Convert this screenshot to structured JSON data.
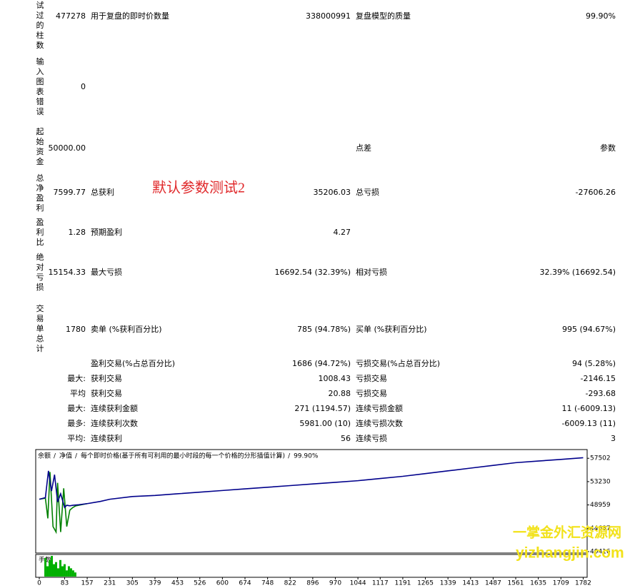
{
  "report": {
    "rows": [
      {
        "head": "试过的柱数",
        "value": "477278",
        "c1": "用于复盘的即时价数量",
        "v1": "338000991",
        "c2": "复盘模型的质量",
        "v2": "99.90%"
      },
      {
        "head": "输入图表错误",
        "value": "0"
      },
      {
        "head": "起始资金",
        "value": "50000.00",
        "c2": "点差",
        "v2": "参数"
      },
      {
        "head": "总净盈利",
        "value": "7599.77",
        "c1": "总获利",
        "v1": "35206.03",
        "c2": "总亏损",
        "v2": "-27606.26"
      },
      {
        "head": "盈利比",
        "value": "1.28",
        "c1": "预期盈利",
        "v1": "4.27"
      },
      {
        "head": "绝对亏损",
        "value": "15154.33",
        "c1": "最大亏损",
        "v1": "16692.54 (32.39%)",
        "c2": "相对亏损",
        "v2": "32.39% (16692.54)"
      },
      {
        "head": "交易单总计",
        "value": "1780",
        "c1": "卖单 (%获利百分比)",
        "v1": "785 (94.78%)",
        "c2": "买单 (%获利百分比)",
        "v2": "995 (94.67%)"
      },
      {
        "c1": "盈利交易(%占总百分比)",
        "v1": "1686 (94.72%)",
        "c2": "亏损交易(%占总百分比)",
        "v2": "94 (5.28%)"
      },
      {
        "value": "最大:",
        "c1": "获利交易",
        "v1": "1008.43",
        "c2": "亏损交易",
        "v2": "-2146.15"
      },
      {
        "value": "平均",
        "c1": "获利交易",
        "v1": "20.88",
        "c2": "亏损交易",
        "v2": "-293.68"
      },
      {
        "value": "最大:",
        "c1": "连续获利金额",
        "v1": "271 (1194.57)",
        "c2": "连续亏损金额",
        "v2": "11 (-6009.13)"
      },
      {
        "value": "最多:",
        "c1": "连续获利次数",
        "v1": "5981.00 (10)",
        "c2": "连续亏损次数",
        "v2": "-6009.13 (11)"
      },
      {
        "value": "平均:",
        "c1": "连续获利",
        "v1": "56",
        "c2": "连续亏损",
        "v2": "3"
      }
    ],
    "annotation": "默认参数测试2",
    "watermark": [
      "一掌金外汇资源网",
      "yizhangjin.com"
    ]
  },
  "chart_data": {
    "type": "line",
    "legend": [
      "余额",
      "净值",
      "每个即时价格(基于所有可利用的最小时段的每一个价格的分形插值计算)",
      "99.90%"
    ],
    "xlim": [
      0,
      1795
    ],
    "ylim": [
      40150,
      59100
    ],
    "xticks": [
      0,
      83,
      157,
      231,
      305,
      379,
      453,
      526,
      600,
      674,
      748,
      822,
      896,
      970,
      1044,
      1117,
      1191,
      1265,
      1339,
      1413,
      1487,
      1561,
      1635,
      1709,
      1782
    ],
    "yticks": [
      57502,
      53230,
      48959,
      44687,
      40416
    ],
    "series": [
      {
        "name": "净值",
        "color": "#008000",
        "x": [
          0,
          20,
          28,
          35,
          45,
          55,
          60,
          70,
          80,
          90,
          100,
          110,
          120,
          157
        ],
        "values": [
          50000,
          50200,
          46500,
          55000,
          45000,
          44000,
          53000,
          44000,
          52000,
          45000,
          48000,
          48500,
          48800,
          49200
        ]
      },
      {
        "name": "余额",
        "color": "#00008b",
        "x": [
          0,
          20,
          30,
          40,
          50,
          60,
          70,
          83,
          90,
          100,
          110,
          130,
          157,
          200,
          231,
          305,
          379,
          453,
          526,
          600,
          674,
          748,
          822,
          896,
          970,
          1044,
          1117,
          1191,
          1265,
          1339,
          1413,
          1487,
          1561,
          1635,
          1709,
          1782
        ],
        "values": [
          50000,
          50300,
          55200,
          51500,
          54500,
          49500,
          51000,
          48500,
          48900,
          48800,
          48900,
          49000,
          49200,
          49600,
          50000,
          50500,
          50700,
          51000,
          51300,
          51600,
          51900,
          52200,
          52500,
          52800,
          53100,
          53400,
          53800,
          54200,
          54700,
          55200,
          55700,
          56200,
          56700,
          57000,
          57300,
          57599.77
        ]
      }
    ],
    "lots": {
      "label": "手数",
      "color": "#00b000",
      "ylim": [
        0,
        1
      ],
      "x": [
        20,
        27,
        34,
        41,
        48,
        55,
        62,
        69,
        76,
        83,
        90,
        97,
        104,
        111,
        118
      ],
      "values": [
        0.9,
        0.5,
        0.8,
        1,
        0.6,
        0.7,
        0.4,
        0.8,
        0.5,
        0.6,
        0.3,
        0.5,
        0.4,
        0.3,
        0.2
      ]
    }
  }
}
